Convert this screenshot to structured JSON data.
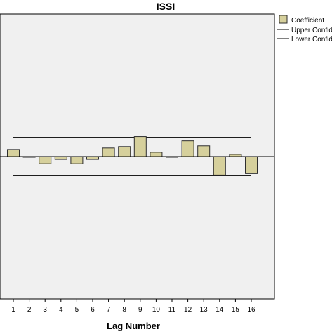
{
  "chart_data": {
    "type": "bar",
    "title": "ISSI",
    "xlabel": "Lag Number",
    "ylabel": "",
    "categories": [
      "1",
      "2",
      "3",
      "4",
      "5",
      "6",
      "7",
      "8",
      "9",
      "10",
      "11",
      "12",
      "13",
      "14",
      "15",
      "16"
    ],
    "series": [
      {
        "name": "Coefficient",
        "values": [
          0.05,
          -0.005,
          -0.05,
          -0.02,
          -0.05,
          -0.02,
          0.06,
          0.07,
          0.14,
          0.03,
          -0.005,
          0.11,
          0.075,
          -0.13,
          0.015,
          -0.12
        ]
      }
    ],
    "confidence_limits": {
      "upper": 0.135,
      "lower": -0.135
    },
    "confidence_names": {
      "upper": "Upper Confidence Limit",
      "lower": "Lower Confidence Limit"
    },
    "ylim": [
      -1,
      1
    ],
    "grid": false,
    "legend_position": "top-right",
    "colors": {
      "bar_fill": "#d6d09c",
      "bar_stroke": "#2e2e2e",
      "plot_background": "#f0f0f0",
      "line": "#000000"
    }
  }
}
